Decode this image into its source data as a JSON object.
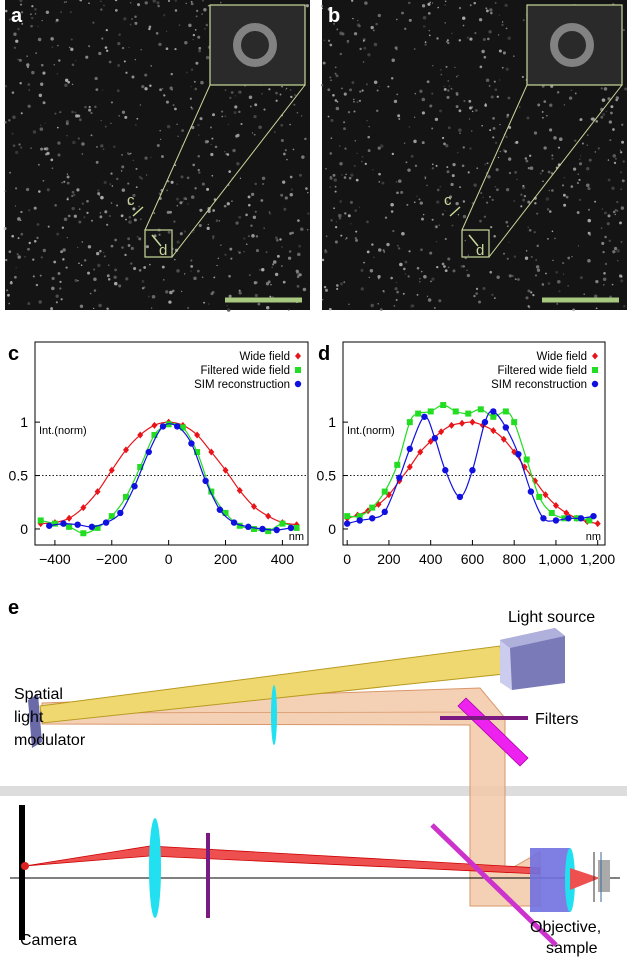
{
  "image_panels": [
    {
      "label": "a",
      "line_label": "c",
      "box_label": "d"
    },
    {
      "label": "b",
      "line_label": "c",
      "box_label": "d"
    }
  ],
  "chart_data": [
    {
      "type": "line",
      "panel_label": "c",
      "ylabel": "Int.(norm)",
      "xlabel": "nm",
      "xlim": [
        -470,
        490
      ],
      "ylim": [
        -0.15,
        1.75
      ],
      "xticks": [
        {
          "value": -400,
          "label": "−400"
        },
        {
          "value": -200,
          "label": "−200"
        },
        0,
        200,
        400
      ],
      "yticks": [
        0,
        0.5,
        1
      ],
      "hline": 0.5,
      "series": [
        {
          "name": "Wide field",
          "color": "#e8141a",
          "marker": "diamond",
          "x": [
            -450,
            -400,
            -350,
            -300,
            -250,
            -200,
            -150,
            -100,
            -50,
            0,
            50,
            100,
            150,
            200,
            250,
            300,
            350,
            400,
            450
          ],
          "values": [
            0.05,
            0.06,
            0.1,
            0.2,
            0.35,
            0.55,
            0.74,
            0.88,
            0.97,
            1.0,
            0.97,
            0.88,
            0.72,
            0.55,
            0.36,
            0.21,
            0.12,
            0.06,
            0.04
          ]
        },
        {
          "name": "Filtered wide field",
          "color": "#22dd22",
          "marker": "square",
          "x": [
            -450,
            -400,
            -350,
            -300,
            -250,
            -200,
            -150,
            -100,
            -50,
            0,
            50,
            100,
            150,
            200,
            250,
            300,
            350,
            400,
            450
          ],
          "values": [
            0.08,
            0.05,
            0.02,
            -0.04,
            0.01,
            0.12,
            0.3,
            0.58,
            0.88,
            0.98,
            0.95,
            0.72,
            0.35,
            0.15,
            0.03,
            0.0,
            -0.02,
            0.05,
            0.01
          ]
        },
        {
          "name": "SIM reconstruction",
          "color": "#1010e0",
          "marker": "circle",
          "x": [
            -420,
            -370,
            -320,
            -270,
            -220,
            -170,
            -120,
            -70,
            -20,
            30,
            80,
            130,
            180,
            230,
            280,
            330,
            380,
            430
          ],
          "values": [
            0.03,
            0.05,
            0.04,
            0.02,
            0.06,
            0.15,
            0.4,
            0.72,
            0.96,
            0.96,
            0.8,
            0.45,
            0.18,
            0.06,
            0.02,
            0.0,
            -0.01,
            0.01
          ]
        }
      ]
    },
    {
      "type": "line",
      "panel_label": "d",
      "ylabel": "Int.(norm)",
      "xlabel": "nm",
      "xlim": [
        -20,
        1235
      ],
      "ylim": [
        -0.15,
        1.75
      ],
      "xticks": [
        0,
        200,
        400,
        600,
        800,
        {
          "value": 1000,
          "label": "1,000"
        },
        {
          "value": 1200,
          "label": "1,200"
        }
      ],
      "yticks": [
        0,
        0.5,
        1
      ],
      "hline": 0.5,
      "series": [
        {
          "name": "Wide field",
          "color": "#e8141a",
          "marker": "diamond",
          "x": [
            0,
            50,
            100,
            150,
            200,
            250,
            300,
            350,
            400,
            450,
            500,
            550,
            600,
            650,
            700,
            750,
            800,
            850,
            900,
            950,
            1000,
            1050,
            1100,
            1150,
            1200
          ],
          "values": [
            0.1,
            0.13,
            0.17,
            0.23,
            0.32,
            0.45,
            0.58,
            0.72,
            0.82,
            0.91,
            0.97,
            0.99,
            1.0,
            0.97,
            0.92,
            0.84,
            0.72,
            0.58,
            0.45,
            0.32,
            0.22,
            0.15,
            0.1,
            0.07,
            0.05
          ]
        },
        {
          "name": "Filtered wide field",
          "color": "#22dd22",
          "marker": "square",
          "x": [
            0,
            60,
            120,
            180,
            240,
            300,
            340,
            400,
            460,
            520,
            580,
            640,
            700,
            760,
            800,
            860,
            920,
            980,
            1040,
            1100,
            1160
          ],
          "values": [
            0.12,
            0.12,
            0.2,
            0.35,
            0.6,
            1.0,
            1.08,
            1.1,
            1.16,
            1.1,
            1.08,
            1.12,
            1.05,
            1.1,
            1.0,
            0.65,
            0.3,
            0.15,
            0.1,
            0.1,
            0.08
          ]
        },
        {
          "name": "SIM reconstruction",
          "color": "#1010e0",
          "marker": "circle",
          "x": [
            0,
            60,
            120,
            180,
            250,
            300,
            370,
            420,
            470,
            540,
            600,
            660,
            700,
            760,
            820,
            880,
            940,
            1000,
            1060,
            1120,
            1180
          ],
          "values": [
            0.05,
            0.08,
            0.1,
            0.16,
            0.48,
            0.75,
            1.05,
            0.85,
            0.55,
            0.3,
            0.55,
            1.0,
            1.1,
            0.95,
            0.7,
            0.35,
            0.1,
            0.08,
            0.1,
            0.1,
            0.12
          ]
        }
      ]
    }
  ],
  "diagram": {
    "label": "e",
    "light_source": "Light source",
    "slm": [
      "Spatial",
      "light",
      "modulator"
    ],
    "filters": "Filters",
    "camera": "Camera",
    "objective": [
      "Objective,",
      "sample"
    ]
  }
}
